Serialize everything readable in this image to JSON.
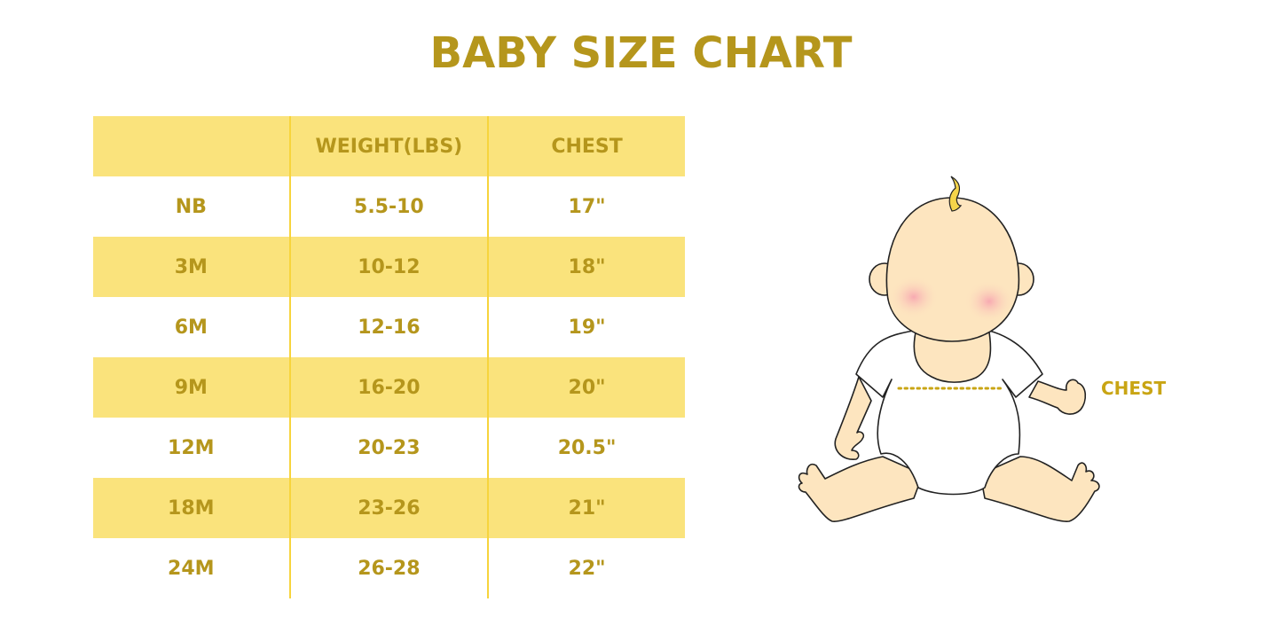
{
  "title": "BABY SIZE CHART",
  "table": {
    "headers": [
      "",
      "WEIGHT(LBS)",
      "CHEST"
    ],
    "rows": [
      [
        "NB",
        "5.5-10",
        "17\""
      ],
      [
        "3M",
        "10-12",
        "18\""
      ],
      [
        "6M",
        "12-16",
        "19\""
      ],
      [
        "9M",
        "16-20",
        "20\""
      ],
      [
        "12M",
        "20-23",
        "20.5\""
      ],
      [
        "18M",
        "23-26",
        "21\""
      ],
      [
        "24M",
        "26-28",
        "22\""
      ]
    ]
  },
  "illustration": {
    "chest_label": "CHEST"
  },
  "colors": {
    "text": "#b5961c",
    "row_fill": "#fae37c",
    "divider": "#f7d43c",
    "skin": "#fde5bf"
  }
}
